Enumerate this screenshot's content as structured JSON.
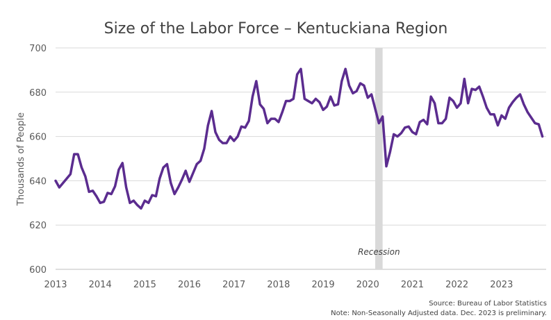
{
  "chart_data": {
    "type": "line",
    "title": "Size of the Labor Force – Kentuckiana Region",
    "xlabel": "",
    "ylabel": "Thousands of People",
    "x_ticks": [
      "2013",
      "2014",
      "2015",
      "2016",
      "2017",
      "2018",
      "2019",
      "2020",
      "2021",
      "2022",
      "2023"
    ],
    "y_ticks": [
      "600",
      "620",
      "640",
      "660",
      "680",
      "700"
    ],
    "xlim": [
      2013,
      2024
    ],
    "ylim": [
      600,
      700
    ],
    "grid": "horizontal",
    "series_color": "#5b2c8f",
    "series": [
      {
        "name": "",
        "x_start": "2013-01",
        "frequency": "monthly",
        "values": [
          640,
          637,
          639,
          641,
          643,
          652,
          652,
          646,
          642,
          635,
          635.5,
          633,
          630,
          630.5,
          634.5,
          634,
          637.5,
          645,
          648,
          637,
          630,
          631,
          629,
          627.5,
          631,
          630,
          633.5,
          633,
          641,
          646,
          647.5,
          639,
          634,
          637,
          640.5,
          644.5,
          639.5,
          643.5,
          647.5,
          649,
          654.5,
          665,
          671.5,
          662,
          658.5,
          657,
          657,
          660,
          658,
          660,
          664.5,
          664,
          667,
          678,
          685,
          674.5,
          672.5,
          666,
          668,
          668,
          666.5,
          671,
          676,
          676,
          677,
          688,
          690.5,
          677,
          676,
          675,
          677,
          675.5,
          672,
          673.5,
          678,
          674,
          674.5,
          685,
          690.5,
          683,
          679.5,
          680.5,
          684,
          683,
          677.5,
          679,
          672.5,
          666,
          669,
          646.5,
          653,
          661,
          660,
          661.5,
          664,
          664.5,
          662,
          661,
          666.5,
          667.5,
          665.5,
          678,
          675,
          666,
          666,
          668,
          677.5,
          676,
          673,
          675,
          686,
          675,
          681.5,
          681,
          682.5,
          678,
          673,
          670,
          670,
          665,
          669.5,
          668,
          673,
          675.5,
          677.5,
          679,
          674.5,
          671,
          668.5,
          666,
          665.5,
          660
        ]
      }
    ],
    "shaded_region": {
      "label": "Recession",
      "start": "2020-03",
      "end": "2020-04",
      "color": "#d9d9d9"
    }
  },
  "source": "Source: Bureau of Labor Statistics",
  "note": "Note: Non-Seasonally Adjusted data. Dec. 2023 is preliminary."
}
